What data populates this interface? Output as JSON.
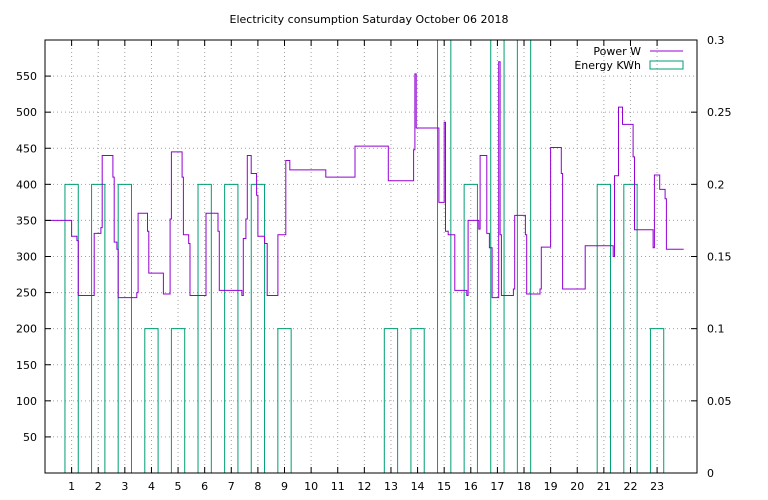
{
  "chart_data": {
    "type": "line",
    "title": "Electricity consumption Saturday October 06 2018",
    "xlabel": "",
    "ylabel": "",
    "x_range": [
      0,
      24.5
    ],
    "y_range": [
      0,
      600
    ],
    "y2_range": [
      0,
      0.3
    ],
    "grid": true,
    "legend_position": "top-right",
    "x_ticks": [
      1,
      2,
      3,
      4,
      5,
      6,
      7,
      8,
      9,
      10,
      11,
      12,
      13,
      14,
      15,
      16,
      17,
      18,
      19,
      20,
      21,
      22,
      23
    ],
    "y_ticks": [
      50,
      100,
      150,
      200,
      250,
      300,
      350,
      400,
      450,
      500,
      550
    ],
    "y2_ticks": [
      "0",
      "0.05",
      "0.1",
      "0.15",
      "0.2",
      "0.25",
      "0.3"
    ],
    "colors": {
      "power": "#9400d3",
      "energy": "#009e73"
    },
    "series": [
      {
        "name": "Power W",
        "axis": "y",
        "style": "line",
        "points": [
          [
            0,
            350
          ],
          [
            1.0,
            350
          ],
          [
            1.0,
            328
          ],
          [
            1.2,
            328
          ],
          [
            1.2,
            322
          ],
          [
            1.25,
            322
          ],
          [
            1.25,
            246
          ],
          [
            1.85,
            246
          ],
          [
            1.85,
            332
          ],
          [
            2.1,
            332
          ],
          [
            2.1,
            340
          ],
          [
            2.15,
            340
          ],
          [
            2.15,
            440
          ],
          [
            2.55,
            440
          ],
          [
            2.55,
            410
          ],
          [
            2.6,
            410
          ],
          [
            2.6,
            320
          ],
          [
            2.7,
            320
          ],
          [
            2.7,
            310
          ],
          [
            2.75,
            310
          ],
          [
            2.75,
            243
          ],
          [
            3.45,
            243
          ],
          [
            3.45,
            250
          ],
          [
            3.5,
            250
          ],
          [
            3.5,
            360
          ],
          [
            3.85,
            360
          ],
          [
            3.85,
            335
          ],
          [
            3.9,
            335
          ],
          [
            3.9,
            277
          ],
          [
            4.45,
            277
          ],
          [
            4.45,
            248
          ],
          [
            4.7,
            248
          ],
          [
            4.7,
            352
          ],
          [
            4.75,
            352
          ],
          [
            4.75,
            445
          ],
          [
            5.15,
            445
          ],
          [
            5.15,
            410
          ],
          [
            5.2,
            410
          ],
          [
            5.2,
            330
          ],
          [
            5.4,
            330
          ],
          [
            5.4,
            318
          ],
          [
            5.45,
            318
          ],
          [
            5.45,
            246
          ],
          [
            6.05,
            246
          ],
          [
            6.05,
            360
          ],
          [
            6.5,
            360
          ],
          [
            6.5,
            335
          ],
          [
            6.55,
            335
          ],
          [
            6.55,
            253
          ],
          [
            7.4,
            253
          ],
          [
            7.4,
            246
          ],
          [
            7.45,
            246
          ],
          [
            7.45,
            325
          ],
          [
            7.55,
            325
          ],
          [
            7.55,
            352
          ],
          [
            7.6,
            352
          ],
          [
            7.6,
            440
          ],
          [
            7.75,
            440
          ],
          [
            7.75,
            415
          ],
          [
            7.95,
            415
          ],
          [
            7.95,
            385
          ],
          [
            8.0,
            385
          ],
          [
            8.0,
            328
          ],
          [
            8.25,
            328
          ],
          [
            8.25,
            318
          ],
          [
            8.35,
            318
          ],
          [
            8.35,
            246
          ],
          [
            8.75,
            246
          ],
          [
            8.75,
            330
          ],
          [
            9.05,
            330
          ],
          [
            9.05,
            433
          ],
          [
            9.2,
            433
          ],
          [
            9.2,
            420
          ],
          [
            10.55,
            420
          ],
          [
            10.55,
            410
          ],
          [
            11.65,
            410
          ],
          [
            11.65,
            453
          ],
          [
            12.9,
            453
          ],
          [
            12.9,
            405
          ],
          [
            13.85,
            405
          ],
          [
            13.85,
            448
          ],
          [
            13.9,
            448
          ],
          [
            13.9,
            553
          ],
          [
            13.95,
            553
          ],
          [
            13.95,
            478
          ],
          [
            14.8,
            478
          ],
          [
            14.8,
            375
          ],
          [
            15.0,
            375
          ],
          [
            15.0,
            486
          ],
          [
            15.05,
            486
          ],
          [
            15.05,
            335
          ],
          [
            15.15,
            335
          ],
          [
            15.15,
            330
          ],
          [
            15.4,
            330
          ],
          [
            15.4,
            253
          ],
          [
            15.85,
            253
          ],
          [
            15.85,
            246
          ],
          [
            15.9,
            246
          ],
          [
            15.9,
            350
          ],
          [
            16.3,
            350
          ],
          [
            16.3,
            338
          ],
          [
            16.35,
            338
          ],
          [
            16.35,
            440
          ],
          [
            16.6,
            440
          ],
          [
            16.6,
            332
          ],
          [
            16.7,
            332
          ],
          [
            16.7,
            312
          ],
          [
            16.8,
            312
          ],
          [
            16.8,
            243
          ],
          [
            17.05,
            243
          ],
          [
            17.05,
            570
          ],
          [
            17.1,
            570
          ],
          [
            17.1,
            330
          ],
          [
            17.15,
            330
          ],
          [
            17.15,
            246
          ],
          [
            17.6,
            246
          ],
          [
            17.6,
            255
          ],
          [
            17.65,
            255
          ],
          [
            17.65,
            357
          ],
          [
            18.05,
            357
          ],
          [
            18.05,
            330
          ],
          [
            18.1,
            330
          ],
          [
            18.1,
            248
          ],
          [
            18.6,
            248
          ],
          [
            18.6,
            255
          ],
          [
            18.65,
            255
          ],
          [
            18.65,
            313
          ],
          [
            19.0,
            313
          ],
          [
            19.0,
            451
          ],
          [
            19.4,
            451
          ],
          [
            19.4,
            415
          ],
          [
            19.45,
            415
          ],
          [
            19.45,
            255
          ],
          [
            20.3,
            255
          ],
          [
            20.3,
            315
          ],
          [
            21.35,
            315
          ],
          [
            21.35,
            300
          ],
          [
            21.4,
            300
          ],
          [
            21.4,
            412
          ],
          [
            21.55,
            412
          ],
          [
            21.55,
            507
          ],
          [
            21.7,
            507
          ],
          [
            21.7,
            483
          ],
          [
            22.1,
            483
          ],
          [
            22.1,
            438
          ],
          [
            22.15,
            438
          ],
          [
            22.15,
            337
          ],
          [
            22.85,
            337
          ],
          [
            22.85,
            312
          ],
          [
            22.9,
            312
          ],
          [
            22.9,
            413
          ],
          [
            23.1,
            413
          ],
          [
            23.1,
            393
          ],
          [
            23.3,
            393
          ],
          [
            23.3,
            380
          ],
          [
            23.35,
            380
          ],
          [
            23.35,
            310
          ],
          [
            24.0,
            310
          ]
        ]
      },
      {
        "name": "Energy KWh",
        "axis": "y2",
        "style": "steps",
        "steps": [
          [
            0.75,
            1.25,
            0.2
          ],
          [
            1.75,
            2.25,
            0.2
          ],
          [
            2.75,
            3.25,
            0.2
          ],
          [
            3.75,
            4.25,
            0.1
          ],
          [
            4.75,
            5.25,
            0.1
          ],
          [
            5.75,
            6.25,
            0.2
          ],
          [
            6.75,
            7.25,
            0.2
          ],
          [
            7.75,
            8.25,
            0.2
          ],
          [
            8.75,
            9.25,
            0.1
          ],
          [
            12.75,
            13.25,
            0.1
          ],
          [
            13.75,
            14.25,
            0.1
          ],
          [
            14.75,
            15.25,
            0.3
          ],
          [
            15.75,
            16.25,
            0.2
          ],
          [
            16.75,
            17.25,
            0.3
          ],
          [
            17.75,
            18.25,
            0.3
          ],
          [
            20.75,
            21.25,
            0.2
          ],
          [
            21.75,
            22.25,
            0.2
          ],
          [
            22.75,
            23.25,
            0.1
          ]
        ]
      }
    ]
  }
}
